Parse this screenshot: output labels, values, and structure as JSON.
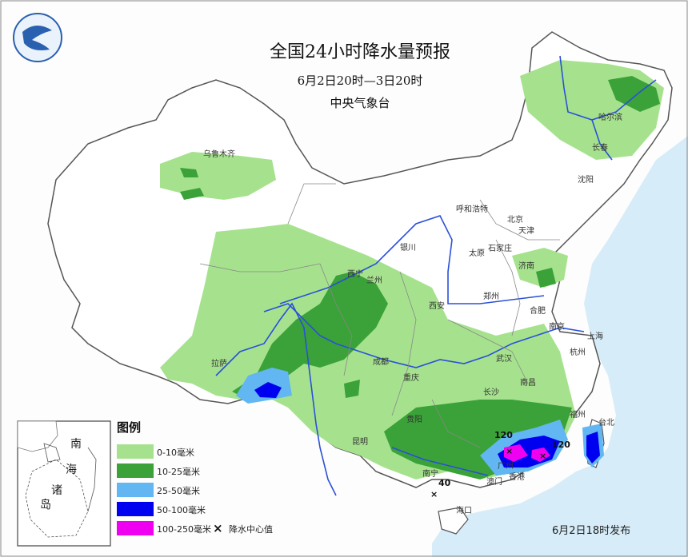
{
  "title": {
    "main": "全国24小时降水量预报",
    "period": "6月2日20时—3日20时",
    "issuer": "中央气象台"
  },
  "footer": "6月2日18时发布",
  "legend": {
    "title": "图例",
    "items": [
      {
        "label": "0-10毫米",
        "color": "#a6e28e"
      },
      {
        "label": "10-25毫米",
        "color": "#3aa238"
      },
      {
        "label": "25-50毫米",
        "color": "#62b6f2"
      },
      {
        "label": "50-100毫米",
        "color": "#0000f0"
      },
      {
        "label": "100-250毫米",
        "color": "#f000f0"
      }
    ],
    "center_marker": "×",
    "center_label": "降水中心值"
  },
  "inset": {
    "labels": [
      "南",
      "海",
      "诸",
      "岛"
    ]
  },
  "max_values": [
    "120",
    "120",
    "40"
  ],
  "cities": [
    "乌鲁木齐",
    "哈尔滨",
    "长春",
    "沈阳",
    "呼和浩特",
    "北京",
    "天津",
    "银川",
    "石家庄",
    "太原",
    "济南",
    "西宁",
    "兰州",
    "郑州",
    "西安",
    "合肥",
    "南京",
    "上海",
    "拉萨",
    "成都",
    "武汉",
    "杭州",
    "重庆",
    "长沙",
    "南昌",
    "福州",
    "贵阳",
    "台北",
    "昆明",
    "广州",
    "南宁",
    "香港",
    "澳门",
    "海口"
  ]
}
